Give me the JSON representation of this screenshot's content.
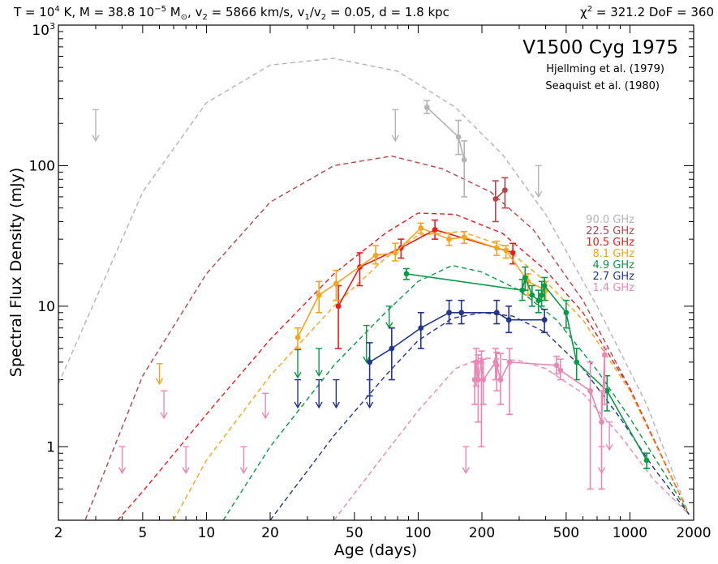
{
  "chart_data": {
    "type": "scatter",
    "header_parts": {
      "a": "T = 10",
      "a_sup": "4",
      "b": " K, M = 38.8 10",
      "b_sup": "−5",
      "c": " M",
      "c_sub": "⊙",
      "d": ", v",
      "d_sub": "2",
      "e": " = 5866 km/s, v",
      "e_sub": "1",
      "f": "/v",
      "f_sub": "2",
      "g": " = 0.05, d = 1.8 kpc",
      "chi": "χ",
      "chi_sup": "2",
      "chi_rest": " = 321.2  DoF = 360"
    },
    "title": "V1500 Cyg 1975",
    "references": [
      "Hjellming et al. (1979)",
      "Seaquist et al. (1980)"
    ],
    "xlabel": "Age (days)",
    "ylabel": "Spectral Flux Density (mJy)",
    "x_scale": "log",
    "y_scale": "log",
    "xlim": [
      2,
      2000
    ],
    "ylim": [
      0.3,
      1000
    ],
    "x_ticks": [
      {
        "v": 2,
        "label": "2"
      },
      {
        "v": 5,
        "label": "5"
      },
      {
        "v": 10,
        "label": "10"
      },
      {
        "v": 20,
        "label": "20"
      },
      {
        "v": 50,
        "label": "50"
      },
      {
        "v": 100,
        "label": "100"
      },
      {
        "v": 200,
        "label": "200"
      },
      {
        "v": 500,
        "label": "500"
      },
      {
        "v": 1000,
        "label": "1000"
      },
      {
        "v": 2000,
        "label": "2000"
      }
    ],
    "y_ticks": [
      {
        "v": 1,
        "label": "1"
      },
      {
        "v": 10,
        "label": "10"
      },
      {
        "v": 100,
        "label": "100"
      }
    ],
    "y_top_label": {
      "base": "10",
      "sup": "3"
    },
    "legend_position": "right",
    "series": [
      {
        "name": "90.0 GHz",
        "color": "#b4b4b4",
        "model": [
          [
            2,
            2.8
          ],
          [
            5,
            65
          ],
          [
            10,
            280
          ],
          [
            20,
            520
          ],
          [
            40,
            580
          ],
          [
            80,
            470
          ],
          [
            150,
            260
          ],
          [
            250,
            120
          ],
          [
            400,
            45
          ],
          [
            700,
            10
          ],
          [
            1200,
            2
          ],
          [
            1900,
            0.33
          ]
        ],
        "points": [
          [
            110,
            260,
            235,
            290
          ],
          [
            155,
            160,
            120,
            210
          ],
          [
            165,
            110,
            60,
            150
          ]
        ],
        "upper_limits": [
          [
            3,
            250,
            150
          ],
          [
            78,
            250,
            150
          ],
          [
            370,
            100,
            60
          ]
        ]
      },
      {
        "name": "22.5 GHz",
        "color": "#b4464b",
        "model": [
          [
            2,
            0.1
          ],
          [
            5,
            3.2
          ],
          [
            10,
            17
          ],
          [
            20,
            55
          ],
          [
            40,
            100
          ],
          [
            75,
            117
          ],
          [
            130,
            95
          ],
          [
            220,
            65
          ],
          [
            350,
            35
          ],
          [
            600,
            11
          ],
          [
            1000,
            2.6
          ],
          [
            1900,
            0.33
          ]
        ],
        "points": [
          [
            232,
            58,
            40,
            78
          ],
          [
            257,
            67,
            50,
            82
          ]
        ],
        "upper_limits": []
      },
      {
        "name": "10.5 GHz",
        "color": "#ee1c1c",
        "model": [
          [
            2,
            0.1
          ],
          [
            5,
            0.48
          ],
          [
            10,
            1.7
          ],
          [
            20,
            5.8
          ],
          [
            40,
            17
          ],
          [
            70,
            33
          ],
          [
            100,
            46
          ],
          [
            150,
            45
          ],
          [
            250,
            33
          ],
          [
            400,
            18
          ],
          [
            600,
            9
          ],
          [
            1000,
            2.6
          ],
          [
            1900,
            0.33
          ]
        ],
        "points": [
          [
            42,
            10,
            5,
            14
          ],
          [
            53,
            19,
            14,
            24
          ],
          [
            83,
            26,
            22,
            30
          ],
          [
            120,
            35,
            30,
            41
          ],
          [
            280,
            24,
            20,
            28
          ]
        ],
        "upper_limits": []
      },
      {
        "name": "8.1 GHz",
        "color": "#f5a41e",
        "model": [
          [
            7,
            0.3
          ],
          [
            10,
            0.8
          ],
          [
            20,
            3.2
          ],
          [
            40,
            10
          ],
          [
            70,
            22
          ],
          [
            100,
            32
          ],
          [
            160,
            34
          ],
          [
            250,
            27
          ],
          [
            400,
            15
          ],
          [
            600,
            8
          ],
          [
            1000,
            2.5
          ],
          [
            1900,
            0.33
          ]
        ],
        "points": [
          [
            27,
            6,
            5,
            7
          ],
          [
            34,
            12,
            9,
            15
          ],
          [
            41,
            14.5,
            11,
            18
          ],
          [
            63,
            23,
            20,
            27
          ],
          [
            78,
            24,
            21,
            28
          ],
          [
            103,
            36,
            33,
            39
          ],
          [
            140,
            30,
            27,
            33
          ],
          [
            165,
            31,
            28,
            34
          ],
          [
            235,
            26,
            23,
            29
          ],
          [
            260,
            25,
            22,
            27
          ],
          [
            330,
            15,
            12,
            17
          ],
          [
            400,
            13,
            11,
            15
          ]
        ],
        "upper_limits": [
          [
            6,
            3.9,
            2.8
          ]
        ]
      },
      {
        "name": "4.9 GHz",
        "color": "#0b9a46",
        "model": [
          [
            12,
            0.3
          ],
          [
            20,
            1
          ],
          [
            40,
            3.8
          ],
          [
            70,
            9
          ],
          [
            100,
            15
          ],
          [
            145,
            19.5
          ],
          [
            200,
            17.5
          ],
          [
            300,
            13
          ],
          [
            450,
            8
          ],
          [
            700,
            3.5
          ],
          [
            1000,
            1.6
          ],
          [
            1500,
            0.6
          ],
          [
            1900,
            0.33
          ]
        ],
        "points": [
          [
            88,
            17,
            15.5,
            18.5
          ],
          [
            310,
            13,
            11,
            15.5
          ],
          [
            320,
            16,
            13,
            19
          ],
          [
            345,
            12,
            10,
            14
          ],
          [
            370,
            11,
            9,
            13
          ],
          [
            383,
            12,
            10,
            15
          ],
          [
            395,
            14,
            11,
            16
          ],
          [
            500,
            9,
            7,
            11
          ],
          [
            560,
            4,
            3,
            5
          ],
          [
            780,
            2.5,
            1.8,
            3.2
          ],
          [
            1200,
            0.8,
            0.7,
            0.9
          ]
        ],
        "upper_limits": [
          [
            27,
            4.9,
            3.1
          ],
          [
            34,
            5,
            3.2
          ],
          [
            57,
            7.3,
            4
          ],
          [
            73,
            10,
            7
          ]
        ]
      },
      {
        "name": "2.7 GHz",
        "color": "#22368c",
        "model": [
          [
            20,
            0.3
          ],
          [
            40,
            1.2
          ],
          [
            70,
            3.2
          ],
          [
            100,
            5.7
          ],
          [
            145,
            8.2
          ],
          [
            200,
            9
          ],
          [
            280,
            8.5
          ],
          [
            400,
            6.5
          ],
          [
            600,
            3.6
          ],
          [
            900,
            1.6
          ],
          [
            1300,
            0.7
          ],
          [
            1900,
            0.33
          ]
        ],
        "points": [
          [
            59,
            4,
            2.3,
            5.5
          ],
          [
            75,
            5,
            3,
            7
          ],
          [
            103,
            7,
            5,
            9
          ],
          [
            140,
            9,
            7.5,
            11
          ],
          [
            160,
            9,
            7.5,
            11
          ],
          [
            235,
            9,
            7.5,
            11
          ],
          [
            268,
            8,
            6.5,
            10
          ],
          [
            395,
            8,
            6.5,
            9.5
          ]
        ],
        "upper_limits": [
          [
            27,
            3,
            1.9
          ],
          [
            34,
            3,
            1.9
          ],
          [
            41,
            3,
            1.9
          ],
          [
            59,
            3,
            1.9
          ]
        ]
      },
      {
        "name": "1.4 GHz",
        "color": "#e889b5",
        "model": [
          [
            40,
            0.3
          ],
          [
            70,
            0.9
          ],
          [
            100,
            1.8
          ],
          [
            150,
            3.6
          ],
          [
            200,
            4.3
          ],
          [
            300,
            4.1
          ],
          [
            400,
            3.6
          ],
          [
            600,
            2.4
          ],
          [
            900,
            1.2
          ],
          [
            1300,
            0.58
          ],
          [
            1900,
            0.33
          ]
        ],
        "points": [
          [
            185,
            3,
            2,
            4
          ],
          [
            188,
            4,
            2.7,
            5
          ],
          [
            192,
            3,
            1.5,
            4.5
          ],
          [
            199,
            4,
            1,
            4.8
          ],
          [
            203,
            3,
            2,
            4.2
          ],
          [
            232,
            4,
            3,
            5
          ],
          [
            235,
            3.8,
            2.5,
            4.7
          ],
          [
            245,
            3,
            2,
            4.6
          ],
          [
            270,
            4,
            1.7,
            5
          ],
          [
            450,
            3.8,
            3.3,
            4.4
          ],
          [
            470,
            3.5,
            3,
            4.2
          ],
          [
            650,
            2.5,
            0.5,
            4
          ],
          [
            735,
            1.5,
            0.5,
            2.5
          ],
          [
            760,
            4.5,
            2,
            5
          ]
        ],
        "upper_limits": [
          [
            4,
            1,
            0.65
          ],
          [
            6.3,
            2.5,
            1.6
          ],
          [
            8,
            1,
            0.65
          ],
          [
            15,
            1,
            0.65
          ],
          [
            19,
            2.4,
            1.6
          ],
          [
            168,
            1,
            0.65
          ],
          [
            735,
            1,
            0.65
          ],
          [
            800,
            1.5,
            0.95
          ]
        ]
      }
    ]
  }
}
